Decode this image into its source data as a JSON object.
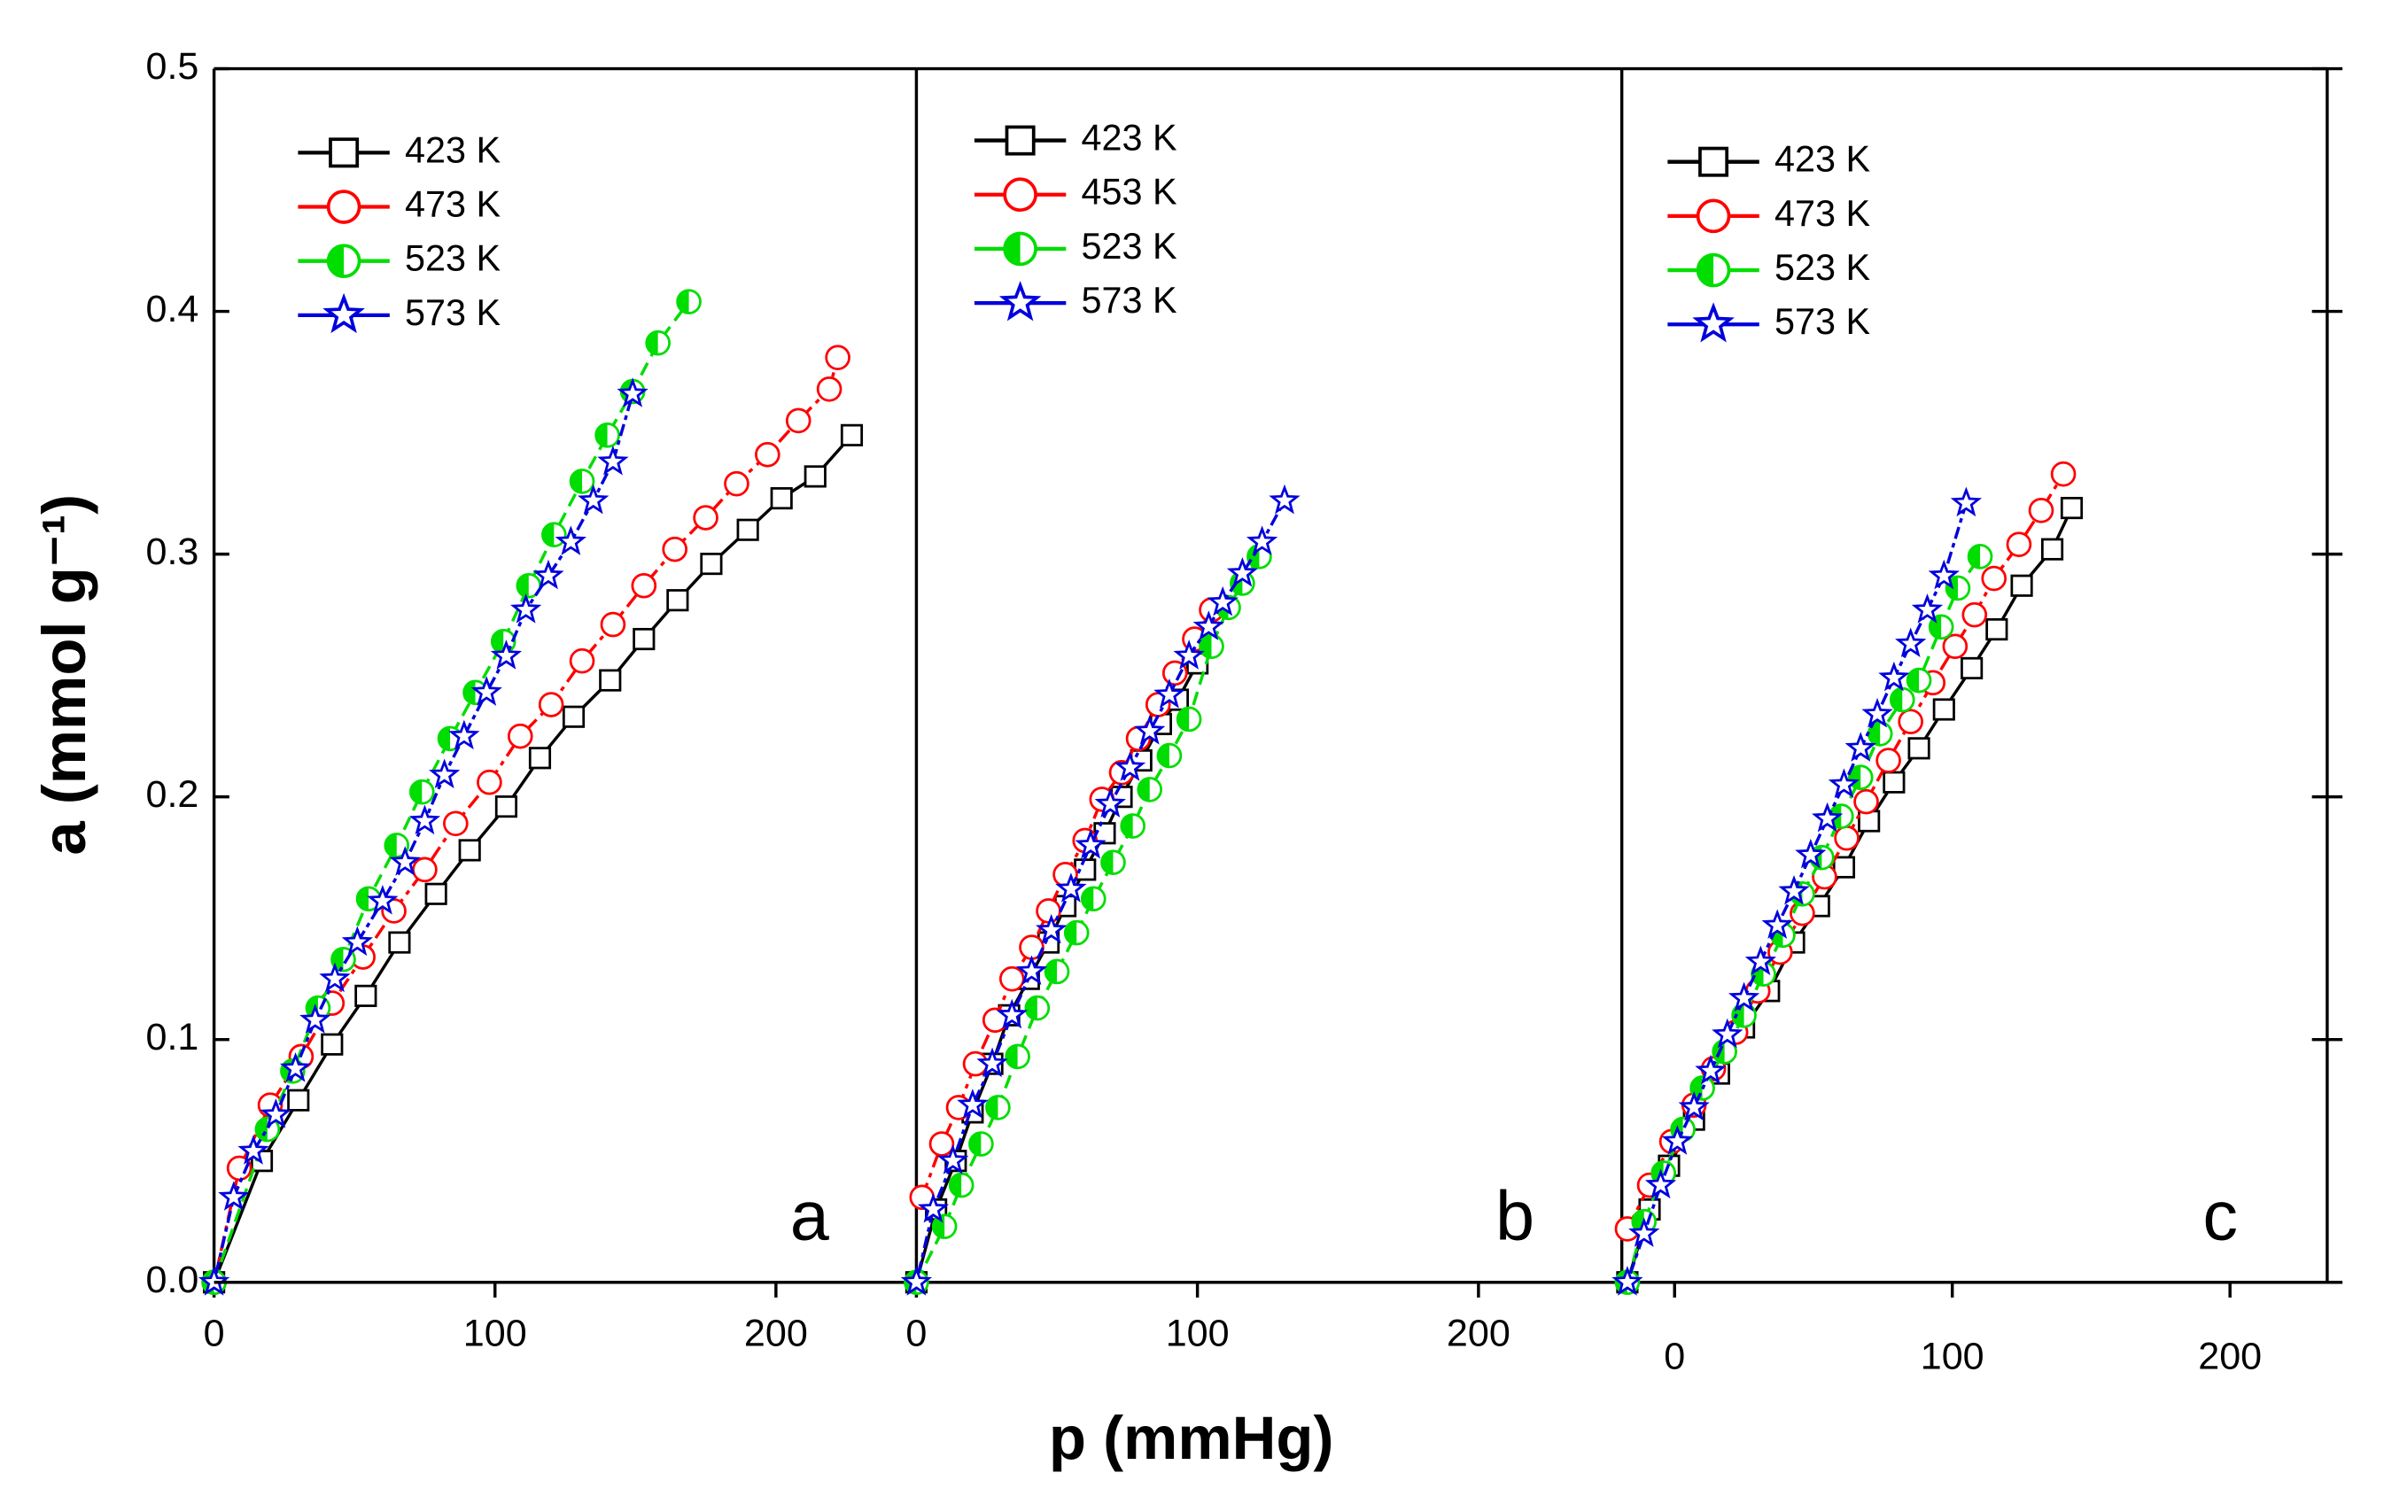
{
  "chart_data": {
    "type": "line",
    "xlabel": "p (mmHg)",
    "ylabel": "a (mmol g⁻¹)",
    "ylim": [
      0,
      0.5
    ],
    "yticks": [
      {
        "value": 0,
        "label": "0.0"
      },
      0.1,
      0.2,
      0.3,
      0.4,
      0.5
    ],
    "panels": [
      {
        "label": "a",
        "xlim": [
          0,
          250
        ],
        "xticks": [
          0,
          100,
          200
        ],
        "series": [
          {
            "name": "423 K",
            "color": "#000000",
            "marker": "square",
            "x": [
              0,
              17,
              30,
              42,
              54,
              66,
              79,
              91,
              104,
              116,
              128,
              141,
              153,
              165,
              177,
              190,
              202,
              214,
              227
            ],
            "values": [
              0,
              0.05,
              0.075,
              0.098,
              0.118,
              0.14,
              0.16,
              0.178,
              0.196,
              0.216,
              0.233,
              0.248,
              0.265,
              0.281,
              0.296,
              0.31,
              0.323,
              0.332,
              0.349
            ]
          },
          {
            "name": "473 K",
            "color": "#ff0000",
            "marker": "circle",
            "x": [
              0,
              9,
              20,
              31,
              42,
              53,
              64,
              75,
              86,
              98,
              109,
              120,
              131,
              142,
              153,
              164,
              175,
              186,
              197,
              208,
              219,
              222
            ],
            "values": [
              0,
              0.047,
              0.073,
              0.093,
              0.115,
              0.134,
              0.153,
              0.17,
              0.189,
              0.206,
              0.225,
              0.238,
              0.256,
              0.271,
              0.287,
              0.302,
              0.315,
              0.329,
              0.341,
              0.355,
              0.368,
              0.381
            ]
          },
          {
            "name": "523 K",
            "color": "#00dd00",
            "marker": "half",
            "x": [
              0,
              19,
              28,
              37,
              46,
              55,
              65,
              74,
              84,
              93,
              103,
              112,
              121,
              131,
              140,
              149,
              158,
              169
            ],
            "values": [
              0,
              0.063,
              0.087,
              0.113,
              0.133,
              0.158,
              0.18,
              0.202,
              0.224,
              0.243,
              0.264,
              0.287,
              0.308,
              0.33,
              0.349,
              0.367,
              0.387,
              0.404
            ]
          },
          {
            "name": "573 K",
            "color": "#0000dd",
            "marker": "star",
            "x": [
              0,
              7,
              14,
              22,
              29,
              36,
              43,
              51,
              60,
              68,
              75,
              82,
              89,
              97,
              104,
              111,
              119,
              127,
              135,
              142,
              149
            ],
            "values": [
              0,
              0.035,
              0.054,
              0.069,
              0.088,
              0.108,
              0.125,
              0.14,
              0.157,
              0.173,
              0.19,
              0.209,
              0.225,
              0.243,
              0.258,
              0.277,
              0.291,
              0.305,
              0.322,
              0.338,
              0.366
            ]
          }
        ]
      },
      {
        "label": "b",
        "xlim": [
          0,
          251
        ],
        "xticks": [
          0,
          100,
          200
        ],
        "series": [
          {
            "name": "423 K",
            "color": "#000000",
            "marker": "square",
            "x": [
              0,
              7,
              14,
              20,
              27,
              33,
              40,
              47,
              53,
              60,
              67,
              73,
              80,
              87,
              93,
              100
            ],
            "values": [
              0,
              0.03,
              0.05,
              0.07,
              0.09,
              0.11,
              0.125,
              0.14,
              0.155,
              0.17,
              0.185,
              0.2,
              0.215,
              0.23,
              0.24,
              0.255
            ]
          },
          {
            "name": "453 K",
            "color": "#ff0000",
            "marker": "circle",
            "x": [
              2,
              9,
              15,
              21,
              28,
              34,
              41,
              47,
              53,
              60,
              66,
              73,
              79,
              86,
              92,
              99,
              105
            ],
            "values": [
              0.035,
              0.057,
              0.072,
              0.09,
              0.108,
              0.125,
              0.138,
              0.153,
              0.168,
              0.182,
              0.199,
              0.21,
              0.224,
              0.238,
              0.251,
              0.265,
              0.277
            ]
          },
          {
            "name": "523 K",
            "color": "#00dd00",
            "marker": "half",
            "x": [
              0,
              10,
              16,
              23,
              29,
              36,
              43,
              50,
              57,
              63,
              70,
              77,
              83,
              90,
              97,
              105,
              111,
              116,
              122
            ],
            "values": [
              0,
              0.023,
              0.04,
              0.057,
              0.072,
              0.093,
              0.113,
              0.128,
              0.144,
              0.158,
              0.173,
              0.188,
              0.203,
              0.217,
              0.232,
              0.262,
              0.278,
              0.288,
              0.299
            ]
          },
          {
            "name": "573 K",
            "color": "#0000dd",
            "marker": "star",
            "x": [
              0,
              6,
              13,
              20,
              27,
              34,
              41,
              48,
              55,
              62,
              69,
              76,
              83,
              90,
              97,
              104,
              109,
              116,
              123,
              131
            ],
            "values": [
              0,
              0.03,
              0.05,
              0.073,
              0.09,
              0.11,
              0.128,
              0.145,
              0.162,
              0.18,
              0.197,
              0.212,
              0.227,
              0.242,
              0.258,
              0.27,
              0.28,
              0.292,
              0.305,
              0.322
            ]
          }
        ]
      },
      {
        "label": "c",
        "xlim": [
          -19,
          235
        ],
        "xticks": [
          0,
          100,
          200
        ],
        "series": [
          {
            "name": "423 K",
            "color": "#000000",
            "marker": "square",
            "x": [
              -17,
              -9,
              -2,
              7,
              16,
              25,
              34,
              43,
              52,
              61,
              70,
              79,
              88,
              97,
              107,
              116,
              125,
              136,
              143
            ],
            "values": [
              0,
              0.03,
              0.048,
              0.067,
              0.086,
              0.105,
              0.12,
              0.14,
              0.155,
              0.171,
              0.19,
              0.206,
              0.22,
              0.236,
              0.253,
              0.269,
              0.287,
              0.302,
              0.319
            ]
          },
          {
            "name": "473 K",
            "color": "#ff0000",
            "marker": "circle",
            "x": [
              -17,
              -9,
              -1,
              7,
              14,
              22,
              30,
              38,
              46,
              54,
              62,
              69,
              77,
              85,
              93,
              101,
              108,
              115,
              124,
              132,
              140
            ],
            "values": [
              0.022,
              0.04,
              0.058,
              0.073,
              0.088,
              0.103,
              0.12,
              0.136,
              0.152,
              0.167,
              0.183,
              0.198,
              0.215,
              0.231,
              0.247,
              0.262,
              0.275,
              0.29,
              0.304,
              0.318,
              0.333
            ]
          },
          {
            "name": "523 K",
            "color": "#00dd00",
            "marker": "half",
            "x": [
              -17,
              -11,
              -4,
              3,
              10,
              18,
              25,
              32,
              39,
              46,
              53,
              60,
              67,
              74,
              82,
              88,
              96,
              102,
              110
            ],
            "values": [
              0,
              0.025,
              0.045,
              0.063,
              0.08,
              0.095,
              0.11,
              0.127,
              0.143,
              0.16,
              0.175,
              0.192,
              0.208,
              0.226,
              0.24,
              0.248,
              0.27,
              0.286,
              0.299
            ]
          },
          {
            "name": "573 K",
            "color": "#0000dd",
            "marker": "star",
            "x": [
              -17,
              -11,
              -5,
              1,
              7,
              13,
              19,
              25,
              31,
              37,
              43,
              49,
              55,
              61,
              67,
              73,
              79,
              85,
              91,
              97,
              105
            ],
            "values": [
              0,
              0.02,
              0.04,
              0.058,
              0.072,
              0.087,
              0.102,
              0.117,
              0.132,
              0.147,
              0.161,
              0.176,
              0.191,
              0.205,
              0.22,
              0.234,
              0.249,
              0.263,
              0.277,
              0.291,
              0.321
            ]
          }
        ]
      }
    ]
  }
}
